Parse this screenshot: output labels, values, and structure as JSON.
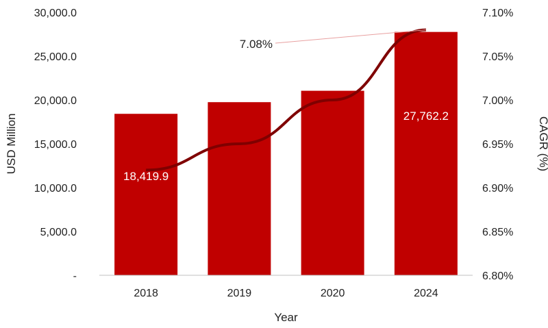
{
  "chart_data": {
    "type": "bar",
    "categories": [
      "2018",
      "2019",
      "2020",
      "2024"
    ],
    "series": [
      {
        "values": [
          18419.9,
          19750,
          21050,
          27762.2
        ],
        "color": "#c00000",
        "axis": "left",
        "kind": "bar"
      },
      {
        "values": [
          6.92,
          6.95,
          7.0,
          7.08
        ],
        "color": "#7f0000",
        "axis": "right",
        "kind": "line"
      }
    ],
    "xlabel": "Year",
    "ylabel": "USD Million",
    "y2label": "CAGR (%)",
    "ylim": [
      0,
      30000
    ],
    "y2lim": [
      6.8,
      7.1
    ],
    "yticks": [
      "-",
      "5,000.0",
      "10,000.0",
      "15,000.0",
      "20,000.0",
      "25,000.0",
      "30,000.0"
    ],
    "y2ticks": [
      "6.80%",
      "6.85%",
      "6.90%",
      "6.95%",
      "7.00%",
      "7.05%",
      "7.10%"
    ],
    "bar_labels": [
      "18,419.9",
      "",
      "",
      "27,762.2"
    ],
    "cagr_label": "7.08%",
    "grid": false,
    "legend": "none"
  }
}
